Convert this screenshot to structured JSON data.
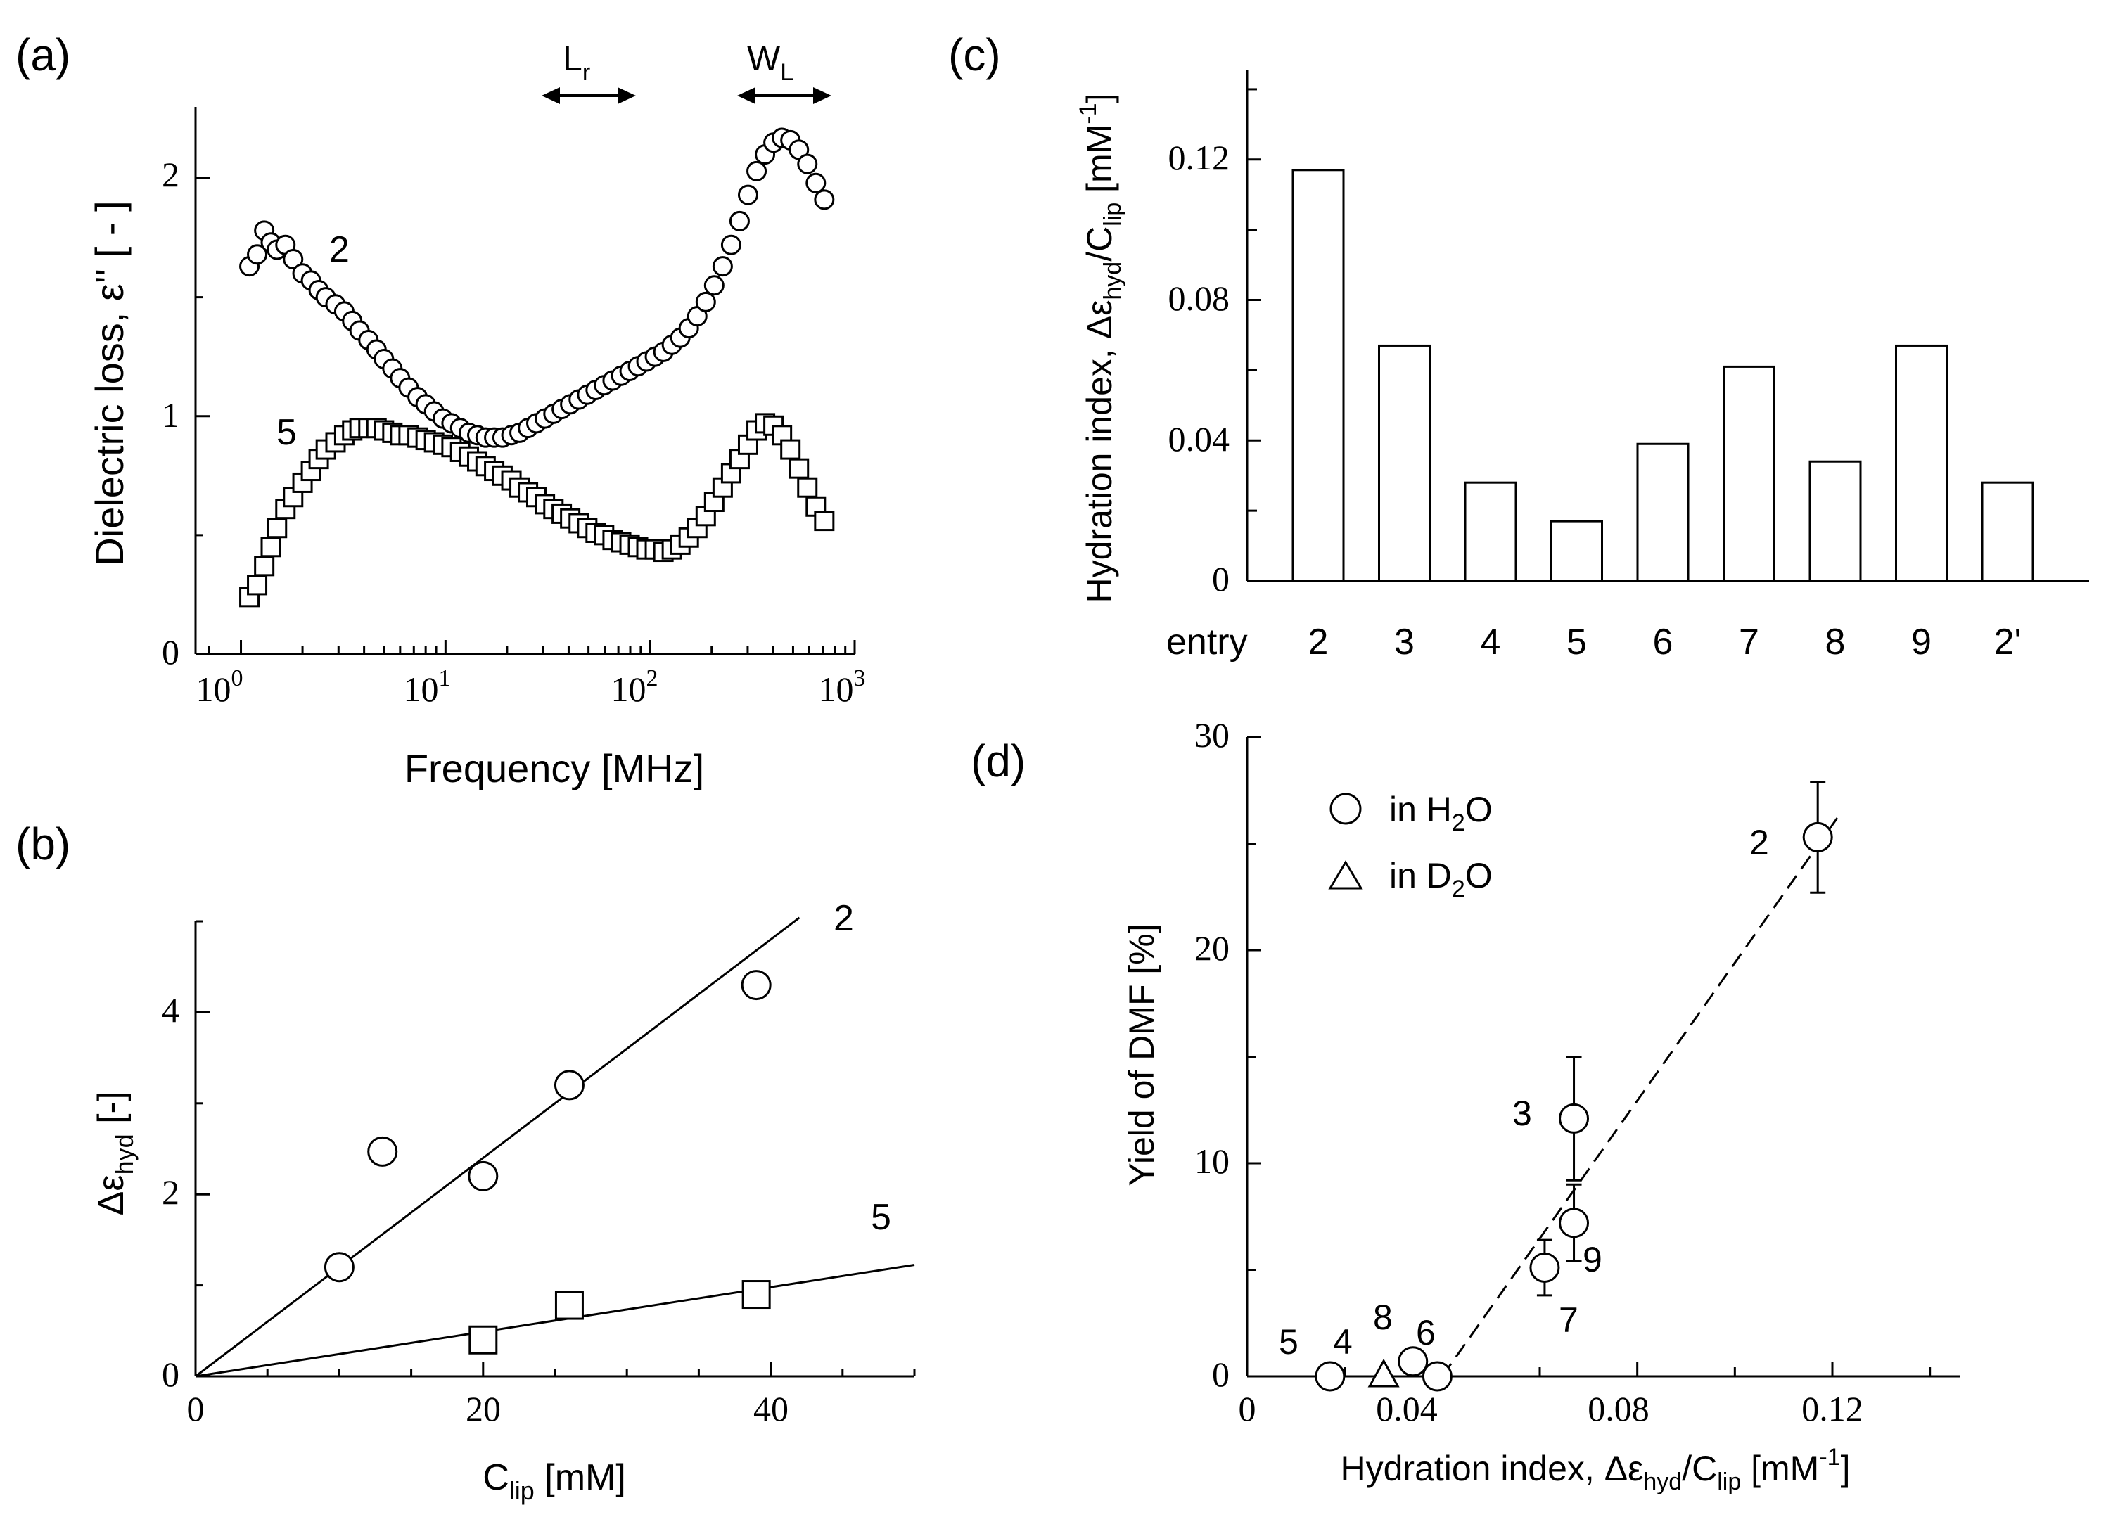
{
  "panels": {
    "a": {
      "label": "(a)",
      "xlabel": "Frequency   [MHz]",
      "ylabel": "Dielectric loss, ε'' [ - ]",
      "ytick_labels": [
        "0",
        "1",
        "2"
      ],
      "xtick_bases": [
        "10",
        "10",
        "10",
        "10"
      ],
      "xtick_exps": [
        "0",
        "1",
        "2",
        "3"
      ],
      "arrow_lr": {
        "main": "L",
        "sub": "r"
      },
      "arrow_wl": {
        "main": "W",
        "sub": "L"
      },
      "curve_labels": [
        "2",
        "5"
      ]
    },
    "b": {
      "label": "(b)",
      "xlabel_main": "C",
      "xlabel_sub": "lip",
      "xlabel_rest": " [mM]",
      "ylabel_main": "Δε",
      "ylabel_sub": "hyd",
      "ylabel_rest": "  [-]",
      "xtick_labels": [
        "0",
        "20",
        "40"
      ],
      "ytick_labels": [
        "0",
        "2",
        "4"
      ],
      "line_labels": [
        "2",
        "5"
      ]
    },
    "c": {
      "label": "(c)",
      "ylabel_pre": "Hydration index, Δε",
      "ylabel_sub1": "hyd",
      "ylabel_mid": "/C",
      "ylabel_sub2": "lip",
      "ylabel_post": " [mM",
      "ylabel_sup": "-1",
      "ylabel_end": "]",
      "ytick_labels": [
        "0",
        "0.04",
        "0.08",
        "0.12"
      ],
      "xrow_title": "entry"
    },
    "d": {
      "label": "(d)",
      "ylabel": "Yield of DMF [%]",
      "xlabel_pre": "Hydration index,  Δε",
      "xlabel_sub1": "hyd",
      "xlabel_mid": "/C",
      "xlabel_sub2": "lip",
      "xlabel_post": " [mM",
      "xlabel_sup": "-1",
      "xlabel_end": "]",
      "xtick_labels": [
        "0",
        "0.04",
        "0.08",
        "0.12"
      ],
      "ytick_labels": [
        "0",
        "10",
        "20",
        "30"
      ],
      "legend_h2o": {
        "pre": "in H",
        "sub": "2",
        "post": "O"
      },
      "legend_d2o": {
        "pre": "in D",
        "sub": "2",
        "post": "O"
      },
      "point_labels": [
        "2",
        "3",
        "9",
        "7",
        "5",
        "4",
        "8",
        "6"
      ]
    }
  },
  "chart_data": [
    {
      "panel": "a",
      "type": "scatter",
      "x_scale": "log",
      "xlim": [
        0.6,
        1000
      ],
      "ylim": [
        0,
        2.3
      ],
      "series": [
        {
          "marker": "circle",
          "x": [
            1.1,
            1.2,
            1.3,
            1.4,
            1.5,
            1.65,
            1.8,
            2.0,
            2.2,
            2.4,
            2.6,
            2.9,
            3.2,
            3.5,
            3.8,
            4.2,
            4.6,
            5.0,
            5.5,
            6.0,
            6.6,
            7.3,
            8.0,
            8.8,
            9.7,
            10.7,
            11.8,
            13.0,
            14.3,
            15.7,
            17.3,
            19.0,
            21.0,
            23.0,
            25.3,
            27.8,
            30.6,
            33.7,
            37.0,
            40.7,
            44.8,
            49.3,
            54.2,
            59.6,
            65.6,
            72.2,
            79.4,
            87.3,
            96.0,
            105.6,
            116.2,
            127.8,
            140.6,
            154.6,
            170.1,
            187.1,
            205.8,
            226.4,
            249.0,
            273.9,
            301.3,
            331.5,
            364.6,
            401.1,
            441.2,
            485.3,
            533.8,
            587.2,
            645.9,
            710.5
          ],
          "y": [
            1.63,
            1.68,
            1.78,
            1.73,
            1.7,
            1.72,
            1.66,
            1.6,
            1.57,
            1.53,
            1.5,
            1.47,
            1.44,
            1.4,
            1.36,
            1.32,
            1.28,
            1.24,
            1.2,
            1.16,
            1.12,
            1.08,
            1.05,
            1.02,
            0.99,
            0.97,
            0.95,
            0.93,
            0.92,
            0.91,
            0.91,
            0.91,
            0.92,
            0.93,
            0.95,
            0.97,
            0.99,
            1.01,
            1.03,
            1.05,
            1.07,
            1.09,
            1.11,
            1.13,
            1.15,
            1.17,
            1.19,
            1.21,
            1.23,
            1.25,
            1.27,
            1.3,
            1.33,
            1.37,
            1.42,
            1.48,
            1.55,
            1.63,
            1.72,
            1.82,
            1.93,
            2.03,
            2.1,
            2.15,
            2.17,
            2.16,
            2.12,
            2.06,
            1.98,
            1.91
          ]
        },
        {
          "marker": "square",
          "x": [
            1.1,
            1.2,
            1.3,
            1.4,
            1.5,
            1.65,
            1.8,
            2.0,
            2.2,
            2.4,
            2.6,
            2.9,
            3.2,
            3.5,
            3.8,
            4.2,
            4.6,
            5.0,
            5.5,
            6.0,
            6.6,
            7.3,
            8.0,
            8.8,
            9.7,
            10.7,
            11.8,
            13.0,
            14.3,
            15.7,
            17.3,
            19.0,
            21.0,
            23.0,
            25.3,
            27.8,
            30.6,
            33.7,
            37.0,
            40.7,
            44.8,
            49.3,
            54.2,
            59.6,
            65.6,
            72.2,
            79.4,
            87.3,
            96.0,
            105.6,
            116.2,
            127.8,
            140.6,
            154.6,
            170.1,
            187.1,
            205.8,
            226.4,
            249.0,
            273.9,
            301.3,
            331.5,
            364.6,
            401.1,
            441.2,
            485.3,
            533.8,
            587.2,
            645.9,
            710.5
          ],
          "y": [
            0.24,
            0.29,
            0.37,
            0.45,
            0.53,
            0.61,
            0.66,
            0.72,
            0.77,
            0.82,
            0.86,
            0.89,
            0.92,
            0.94,
            0.95,
            0.95,
            0.95,
            0.94,
            0.93,
            0.92,
            0.92,
            0.91,
            0.9,
            0.89,
            0.88,
            0.87,
            0.85,
            0.83,
            0.81,
            0.79,
            0.77,
            0.75,
            0.73,
            0.7,
            0.68,
            0.66,
            0.63,
            0.61,
            0.59,
            0.57,
            0.55,
            0.53,
            0.51,
            0.5,
            0.48,
            0.47,
            0.46,
            0.45,
            0.44,
            0.44,
            0.43,
            0.44,
            0.46,
            0.49,
            0.53,
            0.58,
            0.64,
            0.7,
            0.76,
            0.82,
            0.88,
            0.94,
            0.97,
            0.96,
            0.92,
            0.86,
            0.78,
            0.7,
            0.62,
            0.56
          ]
        }
      ]
    },
    {
      "panel": "b",
      "type": "scatter",
      "xlim": [
        0,
        50
      ],
      "ylim": [
        0,
        5
      ],
      "series": [
        {
          "marker": "circle",
          "x": [
            10,
            13,
            20,
            26,
            39
          ],
          "y": [
            1.2,
            2.47,
            2.2,
            3.2,
            4.3
          ],
          "fit_slope": 0.12
        },
        {
          "marker": "square",
          "x": [
            20,
            26,
            39
          ],
          "y": [
            0.4,
            0.78,
            0.9
          ],
          "fit_slope": 0.0245
        }
      ]
    },
    {
      "panel": "c",
      "type": "bar",
      "categories": [
        "2",
        "3",
        "4",
        "5",
        "6",
        "7",
        "8",
        "9",
        "2'"
      ],
      "values": [
        0.117,
        0.067,
        0.028,
        0.017,
        0.039,
        0.061,
        0.034,
        0.067,
        0.028
      ],
      "ylim": [
        0,
        0.15
      ]
    },
    {
      "panel": "d",
      "type": "scatter",
      "xlim": [
        0,
        0.145
      ],
      "ylim": [
        0,
        30
      ],
      "series": [
        {
          "marker": "circle",
          "points": [
            {
              "label": "2",
              "x": 0.117,
              "y": 25.3,
              "err": 2.6
            },
            {
              "label": "3",
              "x": 0.067,
              "y": 12.1,
              "err": 2.9
            },
            {
              "label": "9",
              "x": 0.067,
              "y": 7.2,
              "err": 1.8
            },
            {
              "label": "7",
              "x": 0.061,
              "y": 5.1,
              "err": 1.3
            },
            {
              "label": "5",
              "x": 0.017,
              "y": 0.0,
              "err": 0
            },
            {
              "label": "8",
              "x": 0.034,
              "y": 0.7,
              "err": 0
            },
            {
              "label": "6",
              "x": 0.039,
              "y": 0.0,
              "err": 0
            }
          ]
        },
        {
          "marker": "triangle",
          "points": [
            {
              "label": "4",
              "x": 0.028,
              "y": 0.0,
              "err": 0
            }
          ]
        }
      ],
      "fit_line": {
        "x": [
          0.04,
          0.121
        ],
        "y": [
          0,
          26.2
        ]
      }
    }
  ]
}
